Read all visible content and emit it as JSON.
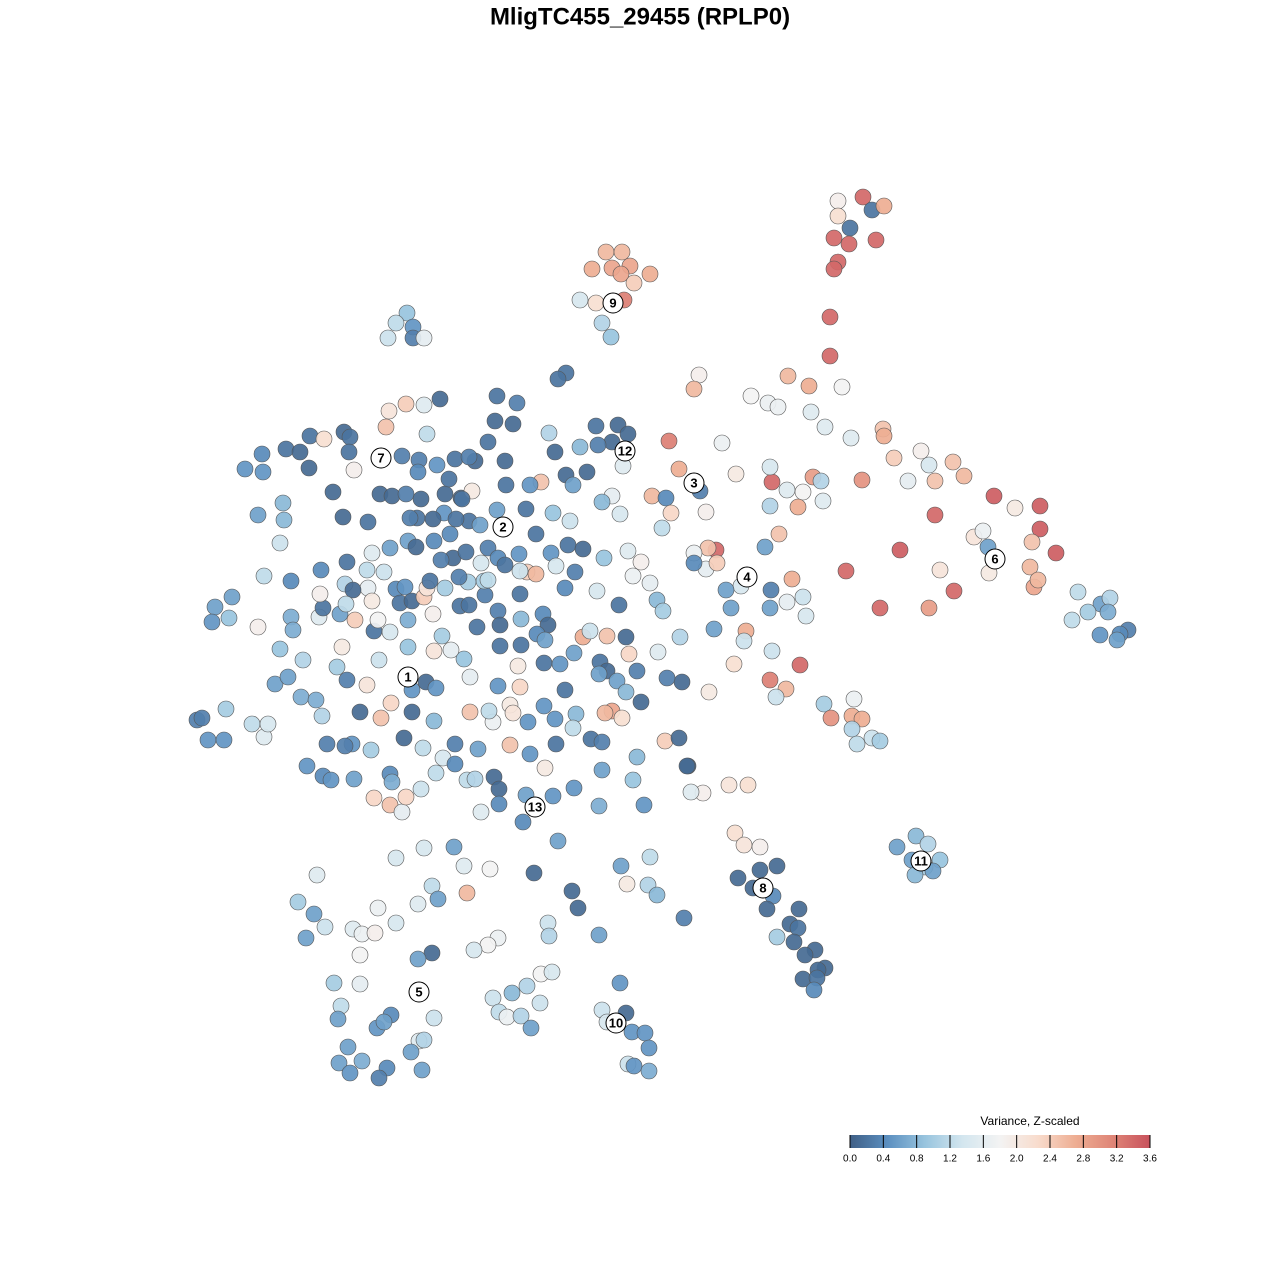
{
  "chart_data": {
    "type": "scatter",
    "title": "MligTC455_29455 (RPLP0)",
    "xlim": [
      0,
      1280
    ],
    "ylim": [
      1280,
      0
    ],
    "x": [
      606,
      622,
      592,
      612,
      630,
      650,
      621,
      634,
      580,
      596,
      624,
      602,
      611,
      838,
      863,
      872,
      884,
      838,
      850,
      834,
      849,
      876,
      838,
      834,
      830,
      830,
      407,
      396,
      413,
      388,
      413,
      424,
      699,
      694,
      751,
      768,
      788,
      809,
      842,
      778,
      811,
      825,
      851,
      883,
      884,
      921,
      894,
      929,
      953,
      964,
      935,
      908,
      862,
      813,
      821,
      803,
      823,
      798,
      772,
      770,
      787,
      770,
      994,
      1015,
      1040,
      1040,
      1032,
      1056,
      974,
      983,
      988,
      989,
      935,
      940,
      900,
      846,
      954,
      1030,
      1034,
      1038,
      929,
      880,
      1078,
      1101,
      1110,
      1088,
      1072,
      1108,
      1128,
      1120,
      1100,
      1117,
      669,
      679,
      700,
      652,
      666,
      671,
      706,
      662,
      716,
      708,
      694,
      706,
      694,
      717,
      722,
      736,
      765,
      779,
      792,
      771,
      787,
      803,
      806,
      770,
      741,
      726,
      731,
      714,
      746,
      744,
      680,
      734,
      772,
      800,
      770,
      786,
      776,
      709,
      682,
      667,
      824,
      854,
      852,
      831,
      862,
      852,
      872,
      880,
      857,
      665,
      679,
      688,
      748,
      729,
      703,
      691,
      916,
      897,
      928,
      912,
      940,
      925,
      933,
      915,
      735,
      744,
      760,
      777,
      760,
      738,
      753,
      773,
      767,
      799,
      790,
      777,
      798,
      794,
      815,
      805,
      825,
      818,
      803,
      817,
      814,
      620,
      602,
      626,
      607,
      632,
      645,
      649,
      628,
      634,
      649,
      599,
      621,
      650,
      627,
      648,
      657,
      684,
      317,
      298,
      314,
      306,
      325,
      353,
      362,
      375,
      378,
      396,
      360,
      418,
      432,
      438,
      396,
      424,
      454,
      464,
      467,
      490,
      534,
      558,
      572,
      578,
      548,
      549,
      498,
      488,
      474,
      432,
      418,
      334,
      360,
      341,
      338,
      391,
      377,
      384,
      434,
      419,
      424,
      411,
      348,
      362,
      339,
      350,
      387,
      422,
      379,
      493,
      512,
      527,
      541,
      552,
      540,
      499,
      507,
      521,
      531,
      197,
      202,
      208,
      224,
      226,
      252,
      264,
      268,
      215,
      212,
      232,
      229,
      258,
      245,
      263,
      262,
      258,
      283,
      284,
      280,
      264,
      291,
      286,
      300,
      310,
      309,
      324,
      344,
      350,
      333,
      343,
      349,
      354,
      368,
      380,
      402,
      389,
      406,
      424,
      386,
      427,
      440,
      497,
      517,
      566,
      558,
      495,
      513,
      488,
      475,
      505,
      549,
      555,
      596,
      618,
      628,
      580,
      612,
      598,
      623,
      587,
      566,
      573,
      612,
      602,
      620,
      541,
      530,
      506,
      461,
      444,
      469,
      480,
      526,
      553,
      570,
      536,
      551,
      568,
      583,
      604,
      628,
      641,
      633,
      650,
      597,
      619,
      657,
      663,
      626,
      629,
      607,
      583,
      590,
      574,
      600,
      607,
      599,
      617,
      626,
      641,
      658,
      637,
      612,
      605,
      622,
      591,
      602,
      576,
      573,
      555,
      544,
      528,
      556,
      545,
      530,
      510,
      493,
      510,
      513,
      498,
      520,
      489,
      478,
      455,
      443,
      470,
      470,
      464,
      451,
      442,
      434,
      426,
      436,
      412,
      408,
      408,
      390,
      379,
      367,
      360,
      381,
      391,
      412,
      434,
      423,
      404,
      371,
      352,
      345,
      327,
      322,
      301,
      316,
      307,
      323,
      331,
      354,
      390,
      392,
      374,
      390,
      402,
      406,
      421,
      436,
      455,
      467,
      475,
      494,
      499,
      499,
      481,
      523,
      526,
      553,
      574,
      599,
      602,
      633,
      637,
      644,
      687,
      275,
      288,
      303,
      280,
      291,
      293,
      319,
      323,
      320,
      340,
      355,
      342,
      337,
      347,
      321,
      347,
      345,
      368,
      372,
      374,
      378,
      367,
      384,
      396,
      400,
      405,
      412,
      424,
      427,
      433,
      445,
      460,
      469,
      485,
      484,
      498,
      488,
      477,
      500,
      521,
      543,
      548,
      537,
      521,
      545,
      527,
      536,
      556,
      575,
      565,
      520,
      500,
      518,
      544,
      565,
      560,
      468,
      488,
      498,
      505,
      519,
      453,
      441,
      459,
      430,
      408,
      416,
      390,
      372,
      434,
      466,
      481,
      450,
      417,
      392,
      406,
      421,
      445,
      449,
      419,
      418,
      437,
      455,
      469,
      433,
      456,
      472,
      462,
      410,
      497,
      520,
      353,
      346
    ],
    "y": [
      252,
      252,
      269,
      268,
      266,
      274,
      274,
      283,
      300,
      303,
      300,
      323,
      337,
      201,
      197,
      210,
      206,
      216,
      228,
      238,
      244,
      240,
      262,
      269,
      317,
      356,
      313,
      323,
      327,
      338,
      338,
      338,
      375,
      389,
      396,
      403,
      376,
      386,
      387,
      407,
      412,
      427,
      438,
      429,
      436,
      451,
      458,
      465,
      462,
      476,
      481,
      481,
      480,
      477,
      481,
      492,
      501,
      507,
      482,
      467,
      490,
      506,
      496,
      508,
      506,
      529,
      542,
      553,
      537,
      531,
      547,
      573,
      515,
      570,
      550,
      571,
      591,
      567,
      587,
      580,
      608,
      608,
      592,
      604,
      598,
      612,
      620,
      612,
      630,
      634,
      635,
      640,
      441,
      469,
      491,
      496,
      498,
      513,
      512,
      528,
      550,
      548,
      553,
      569,
      563,
      563,
      443,
      474,
      547,
      534,
      579,
      590,
      602,
      597,
      616,
      608,
      586,
      590,
      608,
      629,
      631,
      641,
      637,
      664,
      651,
      665,
      680,
      689,
      697,
      692,
      682,
      678,
      704,
      699,
      716,
      718,
      719,
      729,
      738,
      741,
      744,
      741,
      738,
      766,
      785,
      785,
      793,
      792,
      836,
      847,
      844,
      860,
      860,
      867,
      871,
      875,
      833,
      845,
      847,
      866,
      870,
      878,
      888,
      896,
      909,
      909,
      924,
      937,
      928,
      942,
      950,
      955,
      968,
      970,
      979,
      978,
      990,
      983,
      1010,
      1013,
      1022,
      1032,
      1033,
      1048,
      1064,
      1066,
      1071,
      935,
      866,
      857,
      884,
      885,
      895,
      918,
      875,
      902,
      914,
      938,
      927,
      929,
      934,
      933,
      908,
      923,
      955,
      904,
      886,
      899,
      858,
      848,
      847,
      866,
      893,
      869,
      873,
      841,
      891,
      908,
      923,
      936,
      938,
      945,
      950,
      953,
      959,
      983,
      984,
      1006,
      1019,
      1015,
      1028,
      1022,
      1018,
      1041,
      1040,
      1052,
      1047,
      1061,
      1063,
      1073,
      1068,
      1070,
      1078,
      998,
      993,
      986,
      974,
      972,
      1003,
      1012,
      1017,
      1016,
      1028,
      720,
      718,
      740,
      740,
      709,
      724,
      737,
      724,
      607,
      622,
      597,
      618,
      627,
      469,
      472,
      454,
      515,
      503,
      520,
      543,
      576,
      581,
      449,
      452,
      436,
      468,
      439,
      432,
      437,
      492,
      517,
      452,
      470,
      522,
      494,
      456,
      411,
      404,
      405,
      427,
      434,
      399,
      396,
      403,
      373,
      379,
      421,
      424,
      442,
      461,
      461,
      433,
      452,
      426,
      425,
      434,
      447,
      442,
      445,
      466,
      472,
      475,
      485,
      496,
      502,
      514,
      482,
      485,
      485,
      498,
      513,
      521,
      525,
      509,
      513,
      521,
      534,
      553,
      545,
      549,
      558,
      551,
      562,
      576,
      583,
      591,
      605,
      600,
      611,
      637,
      654,
      636,
      637,
      631,
      653,
      662,
      671,
      674,
      681,
      692,
      702,
      652,
      671,
      711,
      713,
      718,
      739,
      742,
      714,
      728,
      719,
      706,
      722,
      744,
      768,
      754,
      745,
      722,
      705,
      713,
      686,
      687,
      711,
      749,
      744,
      758,
      712,
      677,
      659,
      650,
      636,
      651,
      682,
      688,
      690,
      647,
      620,
      632,
      660,
      685,
      712,
      718,
      703,
      712,
      721,
      748,
      738,
      750,
      744,
      746,
      744,
      716,
      697,
      700,
      766,
      776,
      780,
      779,
      774,
      782,
      798,
      805,
      812,
      797,
      789,
      773,
      764,
      780,
      779,
      777,
      789,
      804,
      812,
      822,
      795,
      796,
      788,
      806,
      770,
      780,
      757,
      805,
      766,
      684,
      677,
      660,
      649,
      617,
      630,
      617,
      608,
      594,
      614,
      620,
      647,
      667,
      680,
      570,
      562,
      584,
      588,
      601,
      631,
      620,
      570,
      572,
      589,
      603,
      587,
      601,
      597,
      588,
      614,
      588,
      606,
      605,
      595,
      581,
      611,
      580,
      627,
      625,
      619,
      614,
      625,
      634,
      645,
      640,
      572,
      574,
      566,
      572,
      588,
      594,
      646,
      666,
      663,
      690,
      664,
      582,
      548,
      558,
      565,
      554,
      558,
      560,
      577,
      581,
      541,
      547,
      548,
      553,
      541,
      552,
      563,
      534,
      518,
      496,
      494,
      499,
      494,
      479,
      460,
      472,
      465,
      459,
      457,
      519,
      519,
      491,
      499,
      518,
      510,
      571,
      590,
      604
    ],
    "values": [
      2.6,
      2.6,
      2.7,
      2.8,
      2.8,
      2.7,
      2.8,
      2.4,
      1.4,
      2.2,
      3.2,
      1.1,
      0.9,
      1.9,
      3.4,
      0.2,
      2.7,
      2.2,
      0.2,
      3.4,
      3.4,
      3.4,
      3.4,
      3.4,
      3.4,
      3.4,
      0.9,
      1.2,
      0.5,
      1.3,
      0.3,
      1.6,
      1.9,
      2.6,
      1.8,
      1.7,
      2.6,
      2.7,
      1.8,
      1.7,
      1.5,
      1.5,
      1.5,
      2.5,
      2.7,
      1.9,
      2.4,
      1.4,
      2.5,
      2.6,
      2.5,
      1.6,
      3.0,
      2.9,
      1.1,
      1.8,
      1.5,
      2.7,
      3.4,
      1.4,
      1.5,
      1.1,
      3.5,
      2.0,
      3.5,
      3.5,
      2.5,
      3.5,
      2.1,
      1.7,
      0.6,
      2.0,
      3.4,
      2.1,
      3.5,
      3.4,
      3.4,
      2.6,
      2.8,
      2.6,
      2.9,
      3.4,
      1.2,
      0.6,
      1.1,
      1.0,
      1.2,
      0.7,
      0.3,
      0.4,
      0.5,
      0.6,
      3.2,
      2.7,
      0.3,
      2.6,
      0.4,
      2.3,
      1.9,
      1.2,
      3.4,
      2.5,
      1.7,
      1.6,
      0.4,
      2.4,
      1.7,
      2.0,
      0.6,
      2.5,
      2.7,
      0.3,
      1.6,
      1.3,
      1.4,
      0.6,
      1.4,
      0.6,
      0.6,
      0.6,
      2.7,
      1.3,
      1.1,
      2.2,
      1.3,
      3.4,
      3.2,
      2.6,
      1.3,
      2.0,
      0.1,
      0.3,
      1.0,
      1.7,
      2.7,
      3.0,
      2.7,
      1.1,
      1.3,
      1.0,
      1.2,
      2.4,
      0.1,
      0.1,
      2.2,
      2.1,
      1.9,
      1.5,
      0.8,
      0.6,
      1.1,
      0.6,
      0.9,
      1.0,
      0.6,
      0.8,
      2.2,
      2.1,
      1.9,
      0.1,
      0.1,
      0.1,
      0.1,
      0.4,
      0.1,
      0.1,
      0.1,
      1.0,
      0.2,
      0.1,
      0.1,
      0.1,
      0.1,
      0.1,
      0.1,
      0.2,
      0.4,
      0.5,
      1.3,
      0.1,
      1.4,
      0.5,
      0.5,
      0.5,
      1.3,
      0.5,
      0.7,
      0.6,
      0.6,
      1.2,
      2.0,
      1.1,
      0.8,
      0.3,
      1.5,
      1.0,
      0.6,
      0.6,
      1.3,
      1.5,
      1.7,
      1.9,
      1.7,
      1.4,
      1.8,
      1.5,
      1.2,
      0.6,
      1.4,
      1.4,
      0.6,
      1.5,
      2.6,
      1.8,
      0.1,
      0.6,
      0.1,
      0.1,
      1.3,
      1.1,
      1.7,
      1.8,
      1.4,
      0.1,
      0.6,
      1.0,
      1.6,
      1.2,
      0.6,
      0.4,
      0.5,
      0.6,
      1.3,
      1.5,
      1.1,
      0.6,
      0.6,
      0.7,
      0.6,
      0.5,
      0.4,
      0.6,
      0.3,
      1.3,
      0.8,
      1.1,
      1.8,
      1.4,
      1.3,
      1.2,
      1.7,
      1.1,
      0.6,
      0.3,
      0.3,
      0.5,
      0.5,
      1.0,
      1.2,
      1.5,
      1.4,
      0.6,
      0.5,
      0.6,
      0.9,
      1.9,
      0.5,
      0.5,
      0.4,
      0.6,
      0.8,
      0.8,
      1.3,
      1.2,
      0.4,
      0.2,
      0.1,
      0.2,
      0.1,
      2.2,
      0.1,
      0.2,
      0.1,
      0.1,
      0.2,
      1.9,
      0.2,
      0.1,
      0.3,
      2.1,
      2.4,
      1.5,
      2.5,
      1.2,
      0.1,
      0.2,
      0.3,
      0.2,
      0.2,
      0.1,
      0.1,
      0.2,
      0.1,
      0.1,
      1.1,
      0.1,
      0.2,
      0.1,
      0.1,
      0.8,
      0.1,
      0.3,
      1.5,
      0.1,
      0.1,
      0.6,
      1.6,
      0.8,
      1.4,
      2.5,
      0.5,
      0.2,
      0.1,
      0.5,
      0.2,
      0.6,
      0.2,
      0.9,
      1.3,
      0.2,
      0.5,
      0.2,
      0.1,
      0.9,
      1.5,
      1.9,
      1.7,
      1.6,
      1.4,
      0.2,
      0.8,
      1.0,
      0.1,
      2.3,
      2.5,
      2.7,
      1.3,
      0.6,
      0.2,
      0.1,
      0.6,
      0.6,
      0.8,
      0.1,
      1.5,
      0.3,
      2.8,
      2.6,
      2.2,
      0.2,
      0.3,
      0.8,
      1.2,
      0.5,
      0.5,
      0.5,
      0.2,
      2.0,
      0.5,
      2.5,
      1.7,
      2.0,
      2.1,
      0.5,
      2.3,
      1.2,
      0.6,
      0.3,
      1.4,
      2.5,
      1.6,
      0.9,
      1.6,
      1.0,
      2.1,
      0.1,
      0.5,
      0.5,
      0.9,
      0.7,
      1.4,
      1.3,
      2.1,
      0.1,
      2.5,
      2.3,
      0.1,
      0.8,
      1.2,
      0.1,
      1.0,
      0.5,
      0.3,
      0.3,
      1.1,
      0.7,
      0.7,
      0.5,
      0.4,
      0.5,
      0.6,
      0.4,
      0.7,
      2.3,
      2.5,
      1.6,
      2.3,
      1.3,
      1.2,
      0.4,
      1.2,
      1.1,
      0.1,
      0.1,
      0.4,
      1.5,
      0.4,
      0.6,
      0.5,
      0.5,
      0.7,
      0.6,
      0.9,
      0.8,
      0.5,
      0.1,
      0.6,
      0.6,
      1.1,
      0.9,
      0.7,
      0.7,
      1.5,
      0.2,
      1.9,
      0.6,
      2.4,
      2.0,
      1.0,
      0.3,
      0.4,
      0.2,
      1.1,
      1.6,
      2.0,
      0.2,
      1.8,
      1.2,
      1.3,
      0.4,
      0.2,
      0.5,
      0.1,
      2.4,
      2.1,
      1.9,
      1.0,
      0.2,
      0.2,
      0.3,
      1.0,
      0.3,
      1.2,
      0.2,
      0.1,
      0.8,
      0.4,
      0.1,
      0.4,
      0.2,
      0.6,
      2.4,
      2.6,
      1.4,
      0.3,
      0.4,
      0.2,
      0.2,
      2.0,
      0.2,
      0.2,
      0.5,
      1.0,
      0.3,
      0.4,
      0.2,
      0.5,
      0.1,
      0.3,
      0.3,
      0.2,
      0.6,
      0.1,
      0.6,
      1.5,
      0.4,
      0.2,
      1.4,
      0.4,
      0.2,
      0.1,
      0.3,
      0.1,
      0.1,
      0.2,
      0.3,
      0.4,
      0.5,
      0.2,
      0.3,
      0.1,
      0.2,
      2.0,
      0.2,
      0.3,
      0.6,
      1.3,
      0.1,
      1.2
    ],
    "cluster_labels": [
      {
        "text": "1",
        "x": 408,
        "y": 677
      },
      {
        "text": "2",
        "x": 503,
        "y": 527
      },
      {
        "text": "3",
        "x": 694,
        "y": 483
      },
      {
        "text": "4",
        "x": 747,
        "y": 577
      },
      {
        "text": "5",
        "x": 419,
        "y": 992
      },
      {
        "text": "6",
        "x": 995,
        "y": 559
      },
      {
        "text": "7",
        "x": 381,
        "y": 458
      },
      {
        "text": "8",
        "x": 763,
        "y": 888
      },
      {
        "text": "9",
        "x": 613,
        "y": 303
      },
      {
        "text": "10",
        "x": 616,
        "y": 1023
      },
      {
        "text": "11",
        "x": 921,
        "y": 861
      },
      {
        "text": "12",
        "x": 625,
        "y": 451
      },
      {
        "text": "13",
        "x": 535,
        "y": 807
      }
    ],
    "colorbar": {
      "title": "Variance, Z-scaled",
      "clim": [
        0,
        3.6
      ],
      "ticks": [
        {
          "value": 0,
          "label": "0.0"
        },
        0.4,
        0.8,
        1.2,
        1.6,
        {
          "value": 2,
          "label": "2.0"
        },
        2.4,
        2.8,
        3.2,
        3.6
      ],
      "colors": [
        "#3f5f86",
        "#5b8fc0",
        "#98c4de",
        "#d3e6ef",
        "#f3f3f3",
        "#f8dccd",
        "#eeae93",
        "#df8577",
        "#c8515c"
      ]
    }
  }
}
